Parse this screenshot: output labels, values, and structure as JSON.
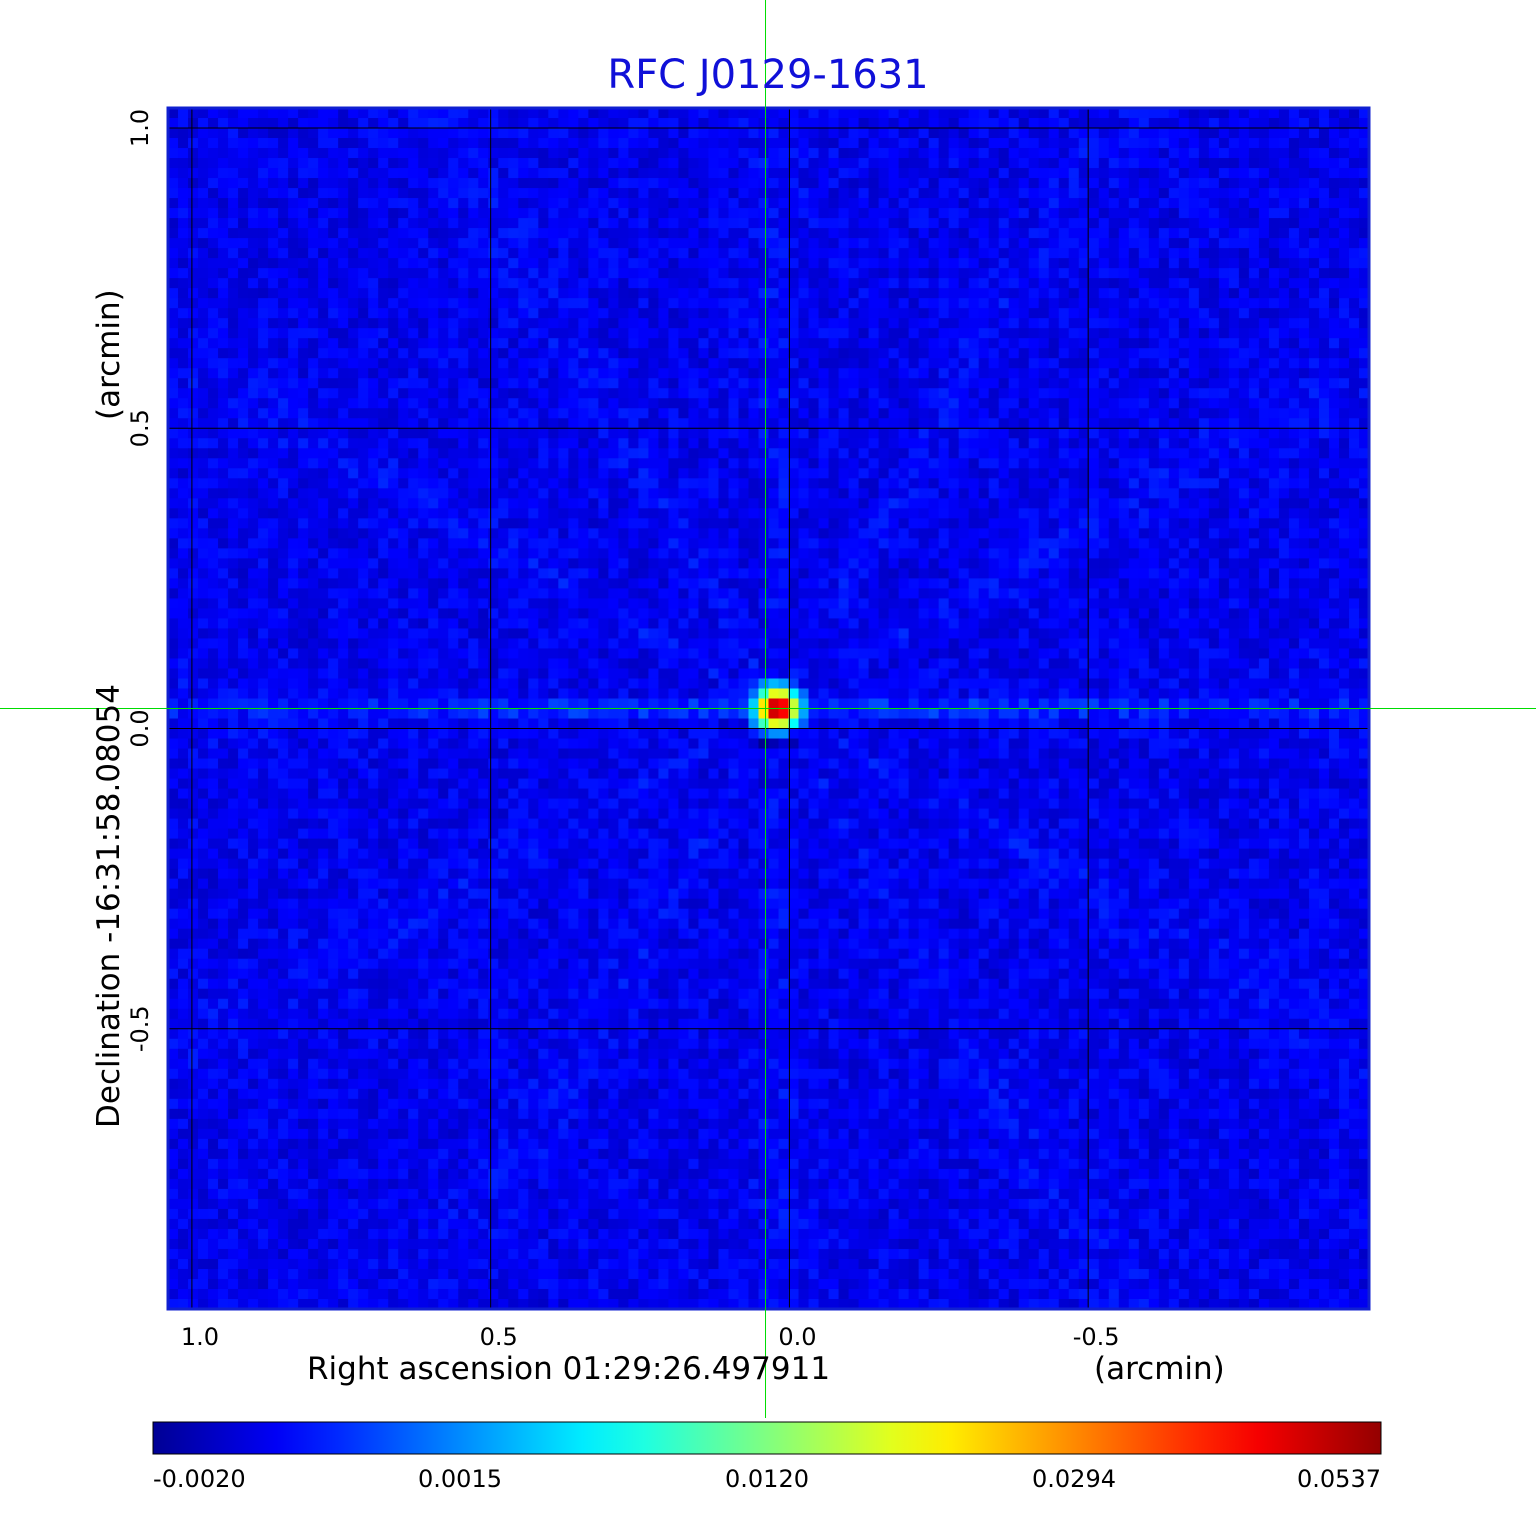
{
  "chart_data": {
    "type": "heatmap",
    "title": "RFC J0129-1631",
    "xlabel": "Right ascension  01:29:26.497911",
    "xunit": "(arcmin)",
    "ylabel": "Declination  -16:31:58.08054",
    "yunit": "(arcmin)",
    "xlim": [
      1.04,
      -0.97
    ],
    "ylim": [
      -1.0,
      1.0
    ],
    "x_ticks": [
      {
        "value": 1.0,
        "label": "1.0"
      },
      {
        "value": 0.5,
        "label": "0.5"
      },
      {
        "value": 0.0,
        "label": "0.0"
      },
      {
        "value": -0.5,
        "label": "-0.5"
      }
    ],
    "y_ticks": [
      {
        "value": 1.0,
        "label": "1.0"
      },
      {
        "value": 0.5,
        "label": "0.5"
      },
      {
        "value": 0.0,
        "label": "0.0"
      },
      {
        "value": -0.5,
        "label": "-0.5"
      }
    ],
    "grid": true,
    "crosshair": {
      "x": 0.04,
      "y": 0.0
    },
    "colorbar": {
      "orientation": "horizontal",
      "placement": "bottom",
      "colormap": "jet",
      "tick_labels": [
        "-0.0020",
        "0.0015",
        "0.0120",
        "0.0294",
        "0.0537"
      ]
    },
    "peak": {
      "x": 0.02,
      "y": 0.0,
      "value": 0.0537
    },
    "background_level": -0.0005,
    "colors": {
      "title": "#1010d8",
      "frame": "#1020d0",
      "grid": "#000000",
      "crosshair": "#00dd00"
    }
  }
}
